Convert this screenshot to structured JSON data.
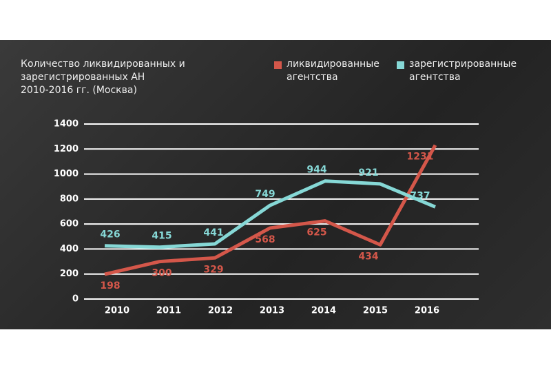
{
  "chart_data": {
    "type": "line",
    "title": [
      "Количество ликвидированных и",
      "зарегистрированных АН",
      "2010-2016 гг. (Москва)"
    ],
    "categories": [
      "2010",
      "2011",
      "2012",
      "2013",
      "2014",
      "2015",
      "2016"
    ],
    "series": [
      {
        "name": "ликвидированные агентства",
        "color": "#d4574a",
        "values": [
          198,
          300,
          329,
          568,
          625,
          434,
          1231
        ]
      },
      {
        "name": "зарегистрированные агентства",
        "color": "#86d8d6",
        "values": [
          426,
          415,
          441,
          749,
          944,
          921,
          737
        ]
      }
    ],
    "ylim": [
      0,
      1400
    ],
    "yticks": [
      0,
      200,
      400,
      600,
      800,
      1000,
      1200,
      1400
    ],
    "grid": true,
    "legend": "top-right"
  }
}
